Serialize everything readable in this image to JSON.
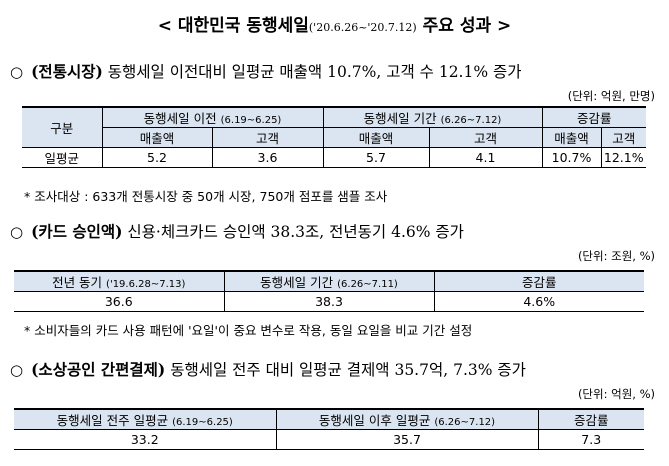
{
  "title": {
    "prefix": "< 대한민국 동행세일",
    "period": "('20.6.26~'20.7.12)",
    "suffix": "주요 성과 >"
  },
  "section1": {
    "bullet": "○",
    "heading": "(전통시장)",
    "text": "동행세일 이전대비 일평균 매출액 10.7%, 고객 수 12.1% 증가",
    "unit": "(단위: 억원, 만명)",
    "table": {
      "col_group": "구분",
      "before_label": "동행세일 이전",
      "before_period": "(6.19~6.25)",
      "during_label": "동행세일 기간",
      "during_period": "(6.26~7.12)",
      "change_label": "증감률",
      "sales": "매출액",
      "customers": "고객",
      "row_label": "일평균",
      "values": [
        "5.2",
        "3.6",
        "5.7",
        "4.1",
        "10.7%",
        "12.1%"
      ]
    },
    "note": "* 조사대상 : 633개 전통시장 중 50개 시장, 750개 점포를 샘플 조사"
  },
  "section2": {
    "bullet": "○",
    "heading": "(카드 승인액)",
    "text": "신용·체크카드 승인액 38.3조, 전년동기 4.6% 증가",
    "unit": "(단위: 조원, %)",
    "table": {
      "h1_label": "전년 동기",
      "h1_period": "('19.6.28~7.13)",
      "h2_label": "동행세일 기간",
      "h2_period": "(6.26~7.11)",
      "h3_label": "증감률",
      "values": [
        "36.6",
        "38.3",
        "4.6%"
      ]
    },
    "note": "* 소비자들의 카드 사용 패턴에 '요일'이 중요 변수로 작용, 동일 요일을 비교 기간 설정"
  },
  "section3": {
    "bullet": "○",
    "heading": "(소상공인 간편결제)",
    "text": "동행세일 전주 대비 일평균 결제액 35.7억, 7.3% 증가",
    "unit": "(단위: 억원, %)",
    "table": {
      "h1_label": "동행세일 전주 일평균",
      "h1_period": "(6.19~6.25)",
      "h2_label": "동행세일 이후 일평균",
      "h2_period": "(6.26~7.12)",
      "h3_label": "증감률",
      "values": [
        "33.2",
        "35.7",
        "7.3"
      ]
    }
  },
  "colors": {
    "header_fill": "#dbe5f1",
    "border": "#000000"
  }
}
